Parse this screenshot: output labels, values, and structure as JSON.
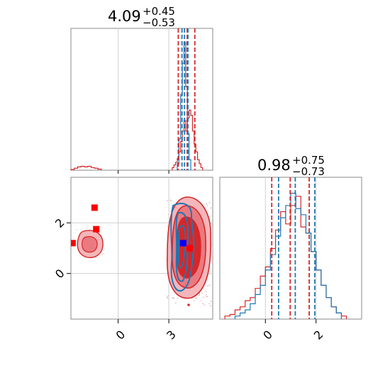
{
  "chart_data": {
    "type": "corner",
    "titles": [
      {
        "value": "4.09",
        "plus": "+0.45",
        "minus": "−0.53"
      },
      {
        "value": "0.98",
        "plus": "+0.75",
        "minus": "−0.73"
      }
    ],
    "x_ticks_param1": {
      "values": [
        0,
        3
      ],
      "labels": [
        "0",
        "3"
      ]
    },
    "x_ticks_param2": {
      "values": [
        0,
        2
      ],
      "labels": [
        "0",
        "2"
      ]
    },
    "y_ticks_param2": {
      "values": [
        0,
        2
      ],
      "labels": [
        "0",
        "2"
      ]
    },
    "param1_range": [
      -2.8,
      5.6
    ],
    "param2_range": [
      -1.8,
      3.8
    ],
    "colors": {
      "red": "#d62728",
      "blue": "#1f77b4",
      "marker_blue": "#0000ff",
      "marker_red": "#ff0000"
    },
    "series": [
      {
        "color": "red",
        "quantiles_param1": [
          3.56,
          4.09,
          4.54
        ],
        "quantiles_param2": [
          0.25,
          0.98,
          1.73
        ],
        "hist_param1": {
          "bins": [
            3.2,
            3.3,
            3.4,
            3.5,
            3.6,
            3.7,
            3.8,
            3.9,
            4.0,
            4.1,
            4.2,
            4.3,
            4.4,
            4.5,
            4.6,
            4.7,
            4.8,
            4.9,
            5.0
          ],
          "counts": [
            0.02,
            0.04,
            0.06,
            0.09,
            0.14,
            0.22,
            0.3,
            0.38,
            0.3,
            0.4,
            0.46,
            0.42,
            0.3,
            0.2,
            0.14,
            0.08,
            0.05,
            0.02
          ]
        },
        "hist_param1_low": {
          "bins": [
            -2.8,
            -2.6,
            -2.4,
            -2.2,
            -2.0,
            -1.8,
            -1.6,
            -1.4,
            -1.2,
            -1.0
          ],
          "counts": [
            0.005,
            0.015,
            0.025,
            0.03,
            0.025,
            0.03,
            0.02,
            0.015,
            0.008
          ]
        },
        "hist_param2": {
          "bins": [
            -1.6,
            -1.4,
            -1.2,
            -1.0,
            -0.8,
            -0.6,
            -0.4,
            -0.2,
            0.0,
            0.2,
            0.4,
            0.6,
            0.8,
            1.0,
            1.2,
            1.4,
            1.6,
            1.8,
            2.0,
            2.2,
            2.4,
            2.6,
            2.8,
            3.0,
            3.2
          ],
          "counts": [
            0.02,
            0.03,
            0.06,
            0.08,
            0.12,
            0.14,
            0.2,
            0.28,
            0.34,
            0.46,
            0.58,
            0.7,
            0.62,
            0.74,
            0.8,
            0.6,
            0.56,
            0.44,
            0.32,
            0.22,
            0.14,
            0.08,
            0.04,
            0.02
          ]
        }
      },
      {
        "color": "blue",
        "quantiles_param1": [
          3.78,
          3.93,
          4.13
        ],
        "quantiles_param2": [
          0.52,
          1.18,
          1.95
        ],
        "hist_param1": {
          "bins": [
            3.5,
            3.6,
            3.7,
            3.8,
            3.9,
            4.0,
            4.1,
            4.2,
            4.3
          ],
          "counts": [
            0.05,
            0.24,
            0.58,
            0.82,
            0.98,
            0.64,
            0.28,
            0.08
          ]
        },
        "hist_param2": {
          "bins": [
            -1.2,
            -1.0,
            -0.8,
            -0.6,
            -0.4,
            -0.2,
            0.0,
            0.2,
            0.4,
            0.6,
            0.8,
            1.0,
            1.2,
            1.4,
            1.6,
            1.8,
            2.0,
            2.2,
            2.4,
            2.6,
            2.8,
            3.0
          ],
          "counts": [
            0.02,
            0.04,
            0.06,
            0.1,
            0.16,
            0.22,
            0.32,
            0.42,
            0.54,
            0.66,
            0.74,
            0.82,
            0.72,
            0.68,
            0.56,
            0.44,
            0.32,
            0.22,
            0.14,
            0.08,
            0.04
          ]
        }
      }
    ],
    "markers": [
      {
        "color": "marker_red",
        "x": -1.4,
        "y": 2.6
      },
      {
        "color": "marker_red",
        "x": -1.3,
        "y": 1.75
      },
      {
        "color": "marker_red",
        "x": -2.7,
        "y": 1.2
      },
      {
        "color": "marker_red",
        "x": 4.25,
        "y": 1.0
      },
      {
        "color": "marker_blue",
        "x": 3.85,
        "y": 1.2
      }
    ]
  }
}
